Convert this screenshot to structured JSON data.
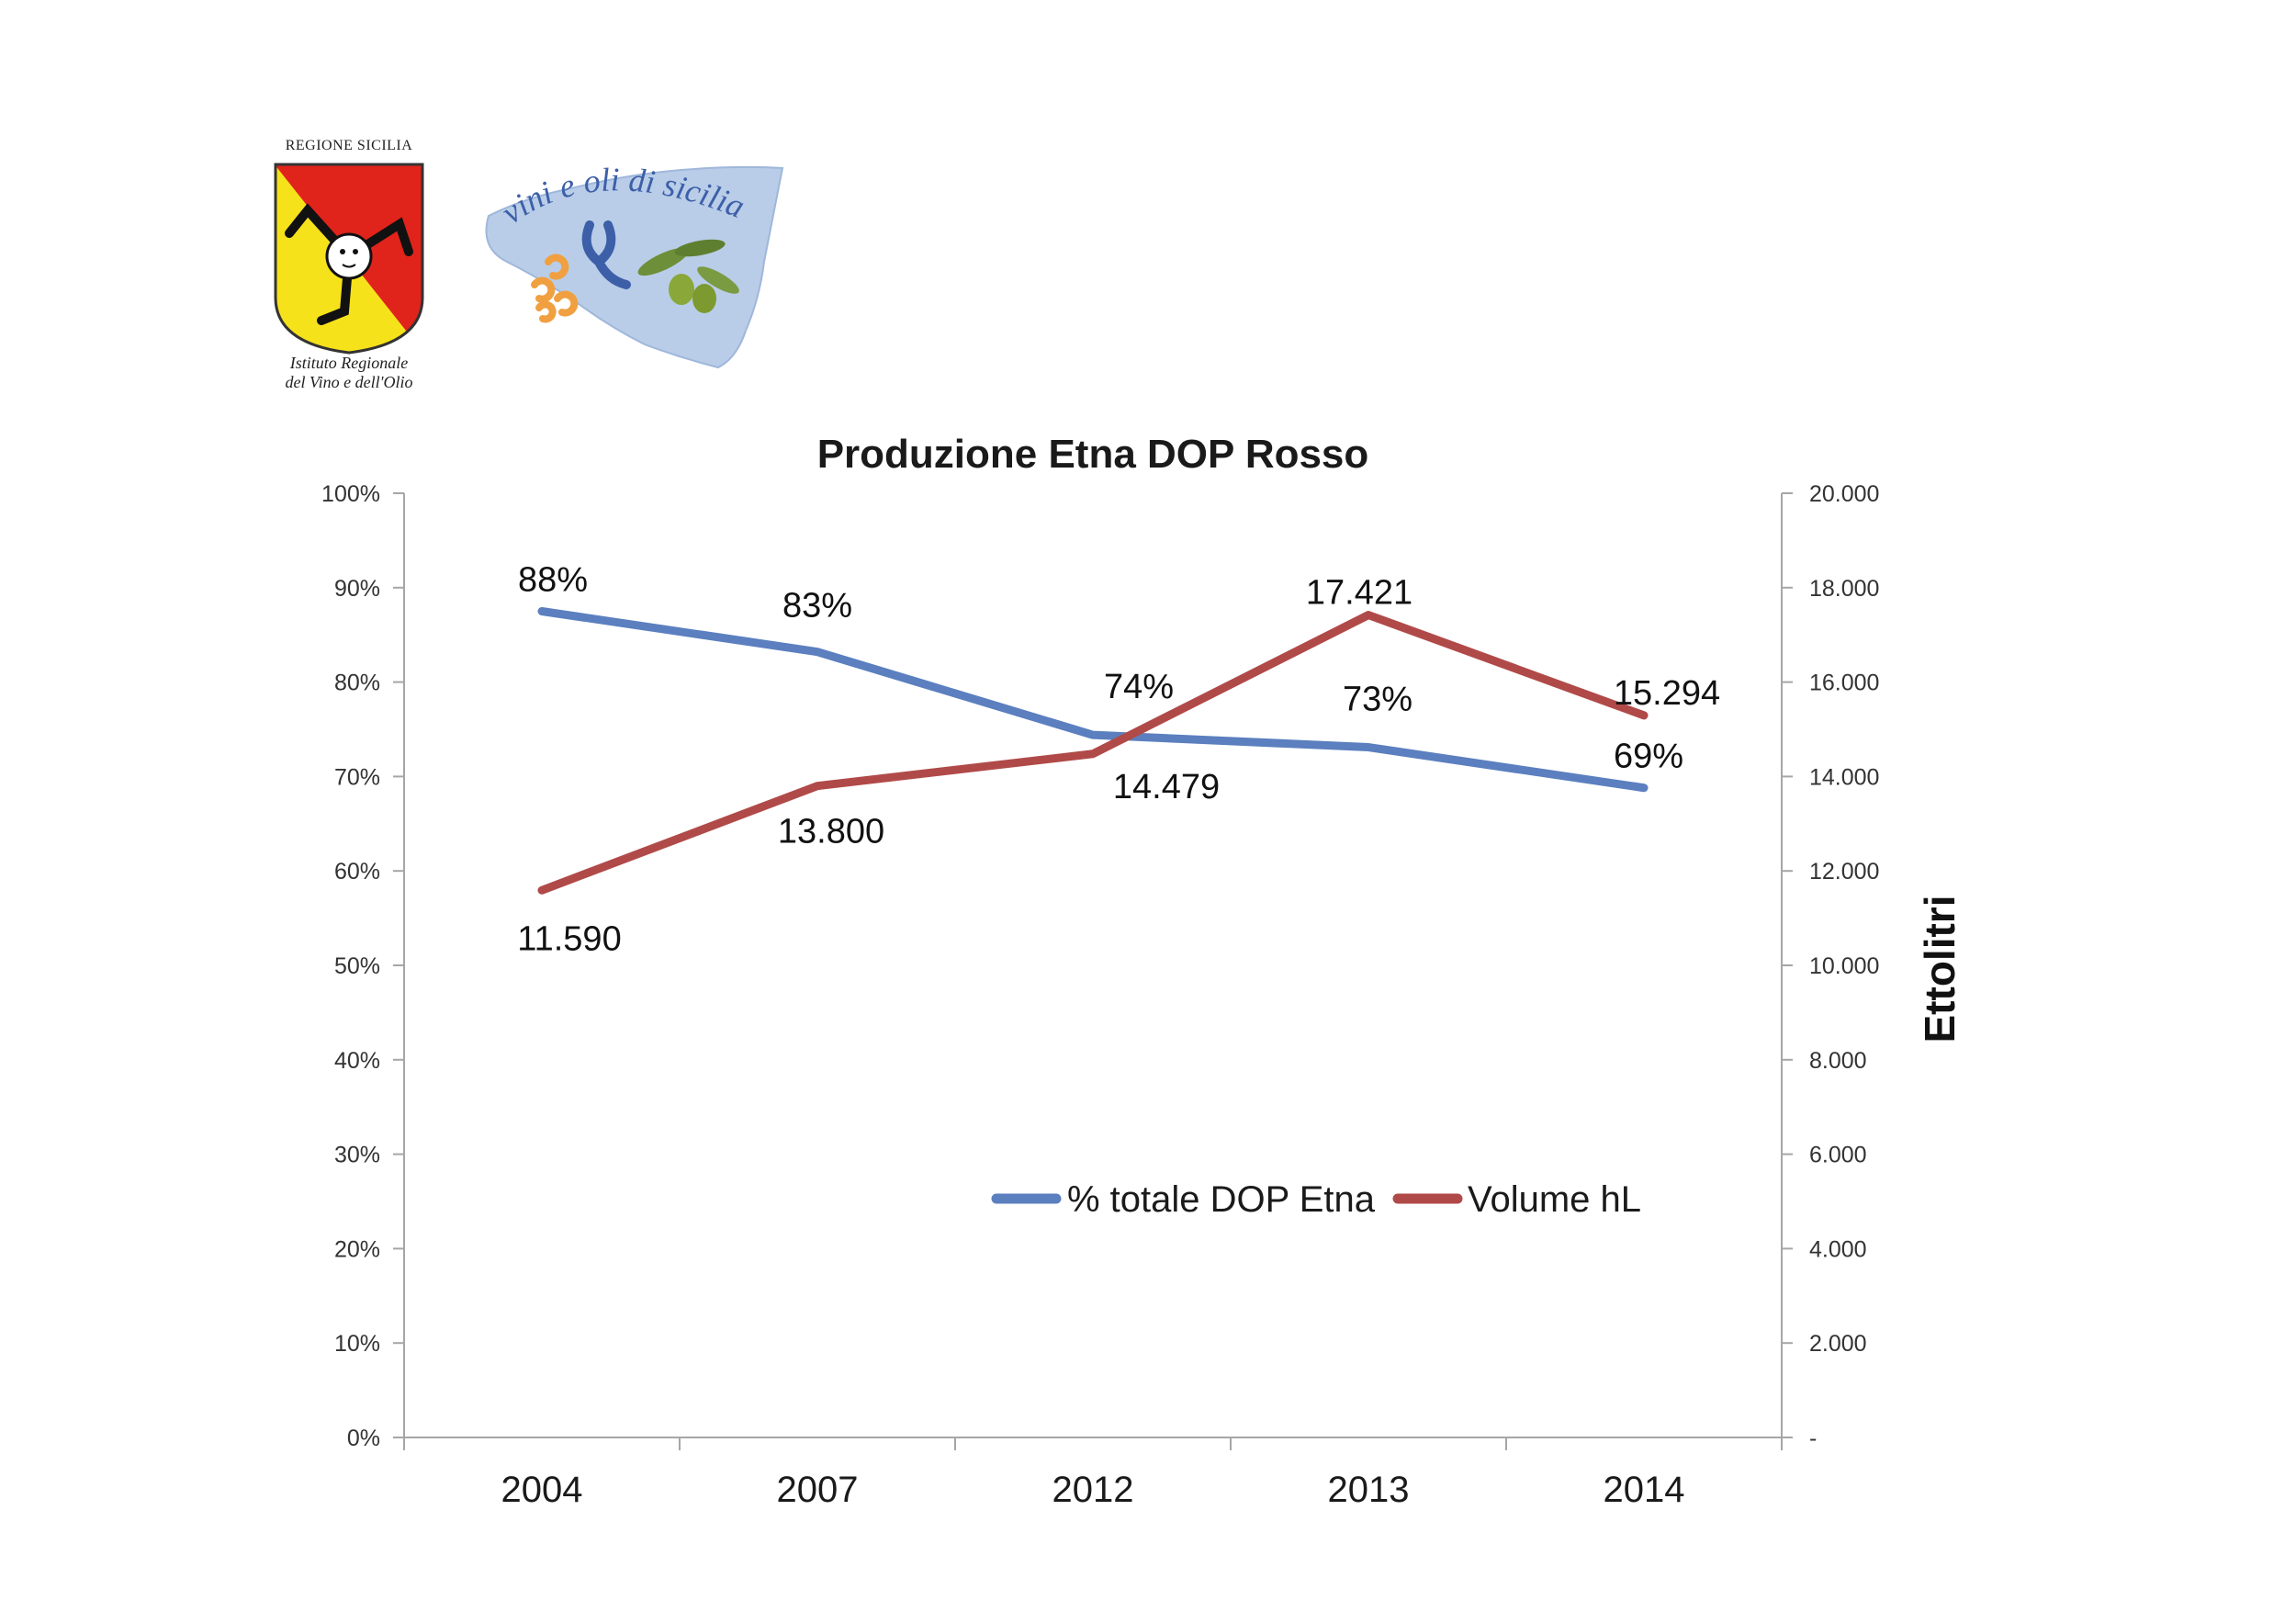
{
  "header": {
    "logo_regione_top": "REGIONE SICILIA",
    "logo_regione_bottom_line1": "Istituto  Regionale",
    "logo_regione_bottom_line2": "del Vino e dell'Olio",
    "logo_vini_text": "vini e oli di sicilia"
  },
  "colors": {
    "series_percent": "#5b7fbf",
    "series_volume": "#b04a48",
    "axis": "#a6a6a6",
    "shield_red": "#e0241b",
    "shield_yellow": "#f6e21a",
    "map_blue": "#b9cde8"
  },
  "chart_data": {
    "type": "line",
    "title": "Produzione Etna DOP Rosso",
    "categories": [
      "2004",
      "2007",
      "2012",
      "2013",
      "2014"
    ],
    "y_left": {
      "range": [
        0,
        100
      ],
      "ticks": [
        "0%",
        "10%",
        "20%",
        "30%",
        "40%",
        "50%",
        "60%",
        "70%",
        "80%",
        "90%",
        "100%"
      ]
    },
    "y_right": {
      "label": "Ettolitri",
      "range": [
        0,
        20000
      ],
      "ticks": [
        "-",
        "2.000",
        "4.000",
        "6.000",
        "8.000",
        "10.000",
        "12.000",
        "14.000",
        "16.000",
        "18.000",
        "20.000"
      ]
    },
    "series": [
      {
        "name": "% totale DOP Etna",
        "axis": "left",
        "values": [
          87.5,
          83.2,
          74.4,
          73.1,
          68.8
        ],
        "labels": [
          "88%",
          "83%",
          "74%",
          "73%",
          "69%"
        ]
      },
      {
        "name": "Volume hL",
        "axis": "right",
        "values": [
          11590,
          13800,
          14479,
          17421,
          15294
        ],
        "labels": [
          "11.590",
          "13.800",
          "14.479",
          "17.421",
          "15.294"
        ]
      }
    ],
    "legend_position": "bottom-right",
    "grid": false
  }
}
